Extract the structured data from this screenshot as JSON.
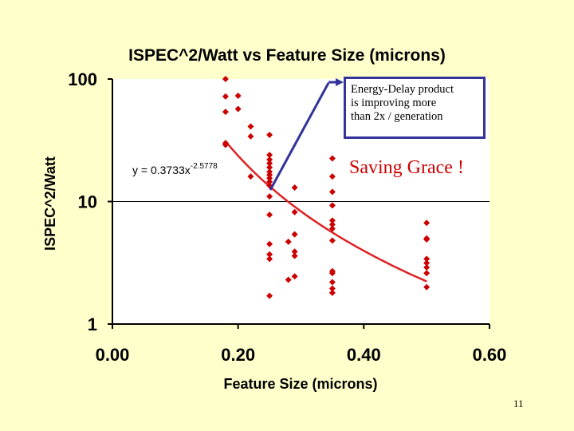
{
  "slide": {
    "callout_lines": [
      "Energy-Delay product",
      "is improving more",
      "than 2x / generation"
    ],
    "annotation": "Saving Grace !",
    "page_number": "11"
  },
  "colors": {
    "background": "#ffffcc",
    "marker": "#cc0000",
    "trend_line": "#dd2222",
    "callout_border": "#333399",
    "arrow": "#333399"
  },
  "chart_data": {
    "type": "scatter",
    "title": "ISPEC^2/Watt vs Feature Size (microns)",
    "xlabel": "Feature Size (microns)",
    "ylabel": "ISPEC^2/Watt",
    "xlim": [
      0.0,
      0.6
    ],
    "ylim": [
      1,
      100
    ],
    "y_scale": "log",
    "grid": "horizontal at y=10",
    "legend": "none",
    "x_ticks": [
      "0.00",
      "0.20",
      "0.40",
      "0.60"
    ],
    "y_ticks": [
      "1",
      "10",
      "100"
    ],
    "equation": {
      "base": "y = 0.3733x",
      "exponent": "-2.5778"
    },
    "trendline": {
      "type": "power",
      "a": 0.3733,
      "b": -2.5778,
      "x_range": [
        0.18,
        0.5
      ]
    },
    "points": [
      {
        "x": 0.18,
        "y": 100
      },
      {
        "x": 0.18,
        "y": 72
      },
      {
        "x": 0.18,
        "y": 54
      },
      {
        "x": 0.18,
        "y": 30
      },
      {
        "x": 0.18,
        "y": 29
      },
      {
        "x": 0.2,
        "y": 73
      },
      {
        "x": 0.2,
        "y": 57
      },
      {
        "x": 0.22,
        "y": 41
      },
      {
        "x": 0.22,
        "y": 34
      },
      {
        "x": 0.22,
        "y": 16
      },
      {
        "x": 0.25,
        "y": 35
      },
      {
        "x": 0.25,
        "y": 24
      },
      {
        "x": 0.25,
        "y": 22
      },
      {
        "x": 0.25,
        "y": 20.5
      },
      {
        "x": 0.25,
        "y": 19
      },
      {
        "x": 0.25,
        "y": 17.5
      },
      {
        "x": 0.25,
        "y": 16.5
      },
      {
        "x": 0.25,
        "y": 15.5
      },
      {
        "x": 0.25,
        "y": 14.5
      },
      {
        "x": 0.25,
        "y": 13.5
      },
      {
        "x": 0.25,
        "y": 11
      },
      {
        "x": 0.25,
        "y": 7.8
      },
      {
        "x": 0.25,
        "y": 4.5
      },
      {
        "x": 0.25,
        "y": 3.7
      },
      {
        "x": 0.25,
        "y": 3.4
      },
      {
        "x": 0.25,
        "y": 1.7
      },
      {
        "x": 0.28,
        "y": 4.7
      },
      {
        "x": 0.28,
        "y": 2.3
      },
      {
        "x": 0.29,
        "y": 13
      },
      {
        "x": 0.29,
        "y": 8.2
      },
      {
        "x": 0.29,
        "y": 5.4
      },
      {
        "x": 0.29,
        "y": 3.9
      },
      {
        "x": 0.29,
        "y": 3.6
      },
      {
        "x": 0.29,
        "y": 2.45
      },
      {
        "x": 0.35,
        "y": 22.5
      },
      {
        "x": 0.35,
        "y": 16
      },
      {
        "x": 0.35,
        "y": 12
      },
      {
        "x": 0.35,
        "y": 9.3
      },
      {
        "x": 0.35,
        "y": 7
      },
      {
        "x": 0.35,
        "y": 6.5
      },
      {
        "x": 0.35,
        "y": 6
      },
      {
        "x": 0.35,
        "y": 4.8
      },
      {
        "x": 0.35,
        "y": 2.7
      },
      {
        "x": 0.35,
        "y": 2.6
      },
      {
        "x": 0.35,
        "y": 2.2
      },
      {
        "x": 0.35,
        "y": 1.95
      },
      {
        "x": 0.35,
        "y": 1.8
      },
      {
        "x": 0.5,
        "y": 6.7
      },
      {
        "x": 0.5,
        "y": 5
      },
      {
        "x": 0.5,
        "y": 4.9
      },
      {
        "x": 0.5,
        "y": 3.4
      },
      {
        "x": 0.5,
        "y": 3.15
      },
      {
        "x": 0.5,
        "y": 2.9
      },
      {
        "x": 0.5,
        "y": 2.6
      },
      {
        "x": 0.5,
        "y": 2.0
      }
    ]
  }
}
